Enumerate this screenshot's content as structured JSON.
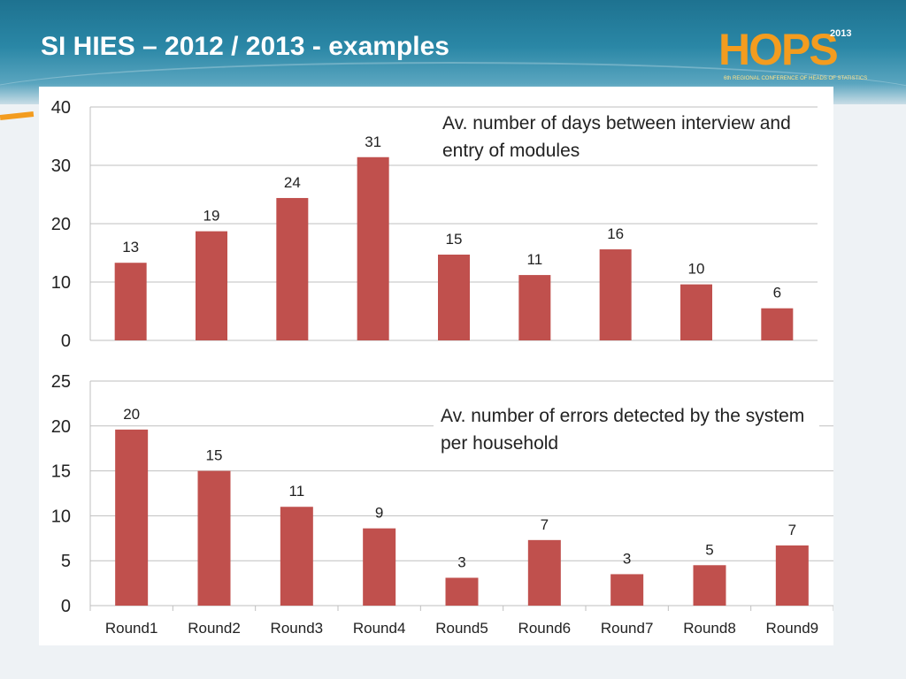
{
  "slide": {
    "title": "SI HIES – 2012 / 2013  - examples"
  },
  "logo": {
    "text": "HOPS",
    "year": "2013",
    "subtitle": "6th REGIONAL CONFERENCE OF HEADS OF STATISTICS"
  },
  "colors": {
    "bar": "#c0504d",
    "gridline": "#bfbfbf",
    "header": "#2a87a6",
    "accent": "#f39c1f"
  },
  "chart_data": [
    {
      "type": "bar",
      "annotation": "Av. number of days between interview and entry of modules",
      "categories": [
        "Round1",
        "Round2",
        "Round3",
        "Round4",
        "Round5",
        "Round6",
        "Round7",
        "Round8",
        "Round9"
      ],
      "values": [
        13.3,
        18.7,
        24.4,
        31.4,
        14.7,
        11.2,
        15.6,
        9.6,
        5.5
      ],
      "data_labels": [
        "13",
        "19",
        "24",
        "31",
        "15",
        "11",
        "16",
        "10",
        "6"
      ],
      "ylim": [
        0,
        40
      ],
      "yticks": [
        "0",
        "10",
        "20",
        "30",
        "40"
      ],
      "grid": true,
      "show_x_tick_labels": false
    },
    {
      "type": "bar",
      "annotation": "Av. number of errors detected by the system per household",
      "categories": [
        "Round1",
        "Round2",
        "Round3",
        "Round4",
        "Round5",
        "Round6",
        "Round7",
        "Round8",
        "Round9"
      ],
      "values": [
        19.6,
        15.0,
        11.0,
        8.6,
        3.1,
        7.3,
        3.5,
        4.5,
        6.7
      ],
      "data_labels": [
        "20",
        "15",
        "11",
        "9",
        "3",
        "7",
        "3",
        "5",
        "7"
      ],
      "ylim": [
        0,
        25
      ],
      "yticks": [
        "0",
        "5",
        "10",
        "15",
        "20",
        "25"
      ],
      "grid": true,
      "show_x_tick_labels": true
    }
  ]
}
